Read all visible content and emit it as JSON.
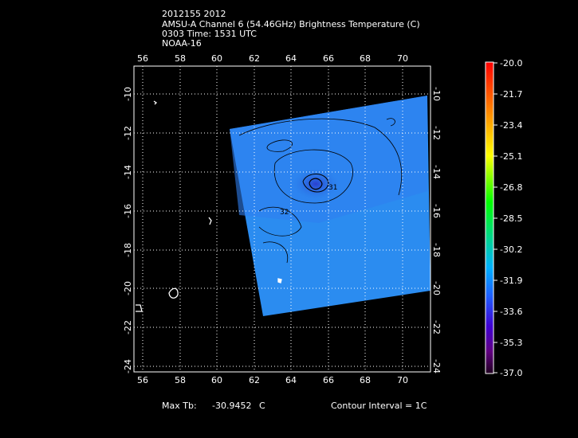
{
  "header": {
    "line1": "2012155 2012",
    "line2": "AMSU-A Channel 6 (54.46GHz) Brightness Temperature (C)",
    "line3": "0303 Time: 1531 UTC",
    "line4": "NOAA-16"
  },
  "map": {
    "lon_ticks": [
      "56",
      "58",
      "60",
      "62",
      "64",
      "66",
      "68",
      "70"
    ],
    "lat_ticks": [
      "-10",
      "-12",
      "-14",
      "-16",
      "-18",
      "-20",
      "-22",
      "-24"
    ],
    "contour_labels": [
      "31",
      "32"
    ],
    "swath_color": "#1e90ff"
  },
  "colorbar": {
    "labels": [
      "-20.0",
      "-21.7",
      "-23.4",
      "-25.1",
      "-26.8",
      "-28.5",
      "-30.2",
      "-31.9",
      "-33.6",
      "-35.3",
      "-37.0"
    ]
  },
  "footer": {
    "max_tb_label": "Max Tb:",
    "max_tb_value": "-30.9452",
    "max_tb_unit": "C",
    "contour_interval": "Contour Interval = 1C"
  }
}
